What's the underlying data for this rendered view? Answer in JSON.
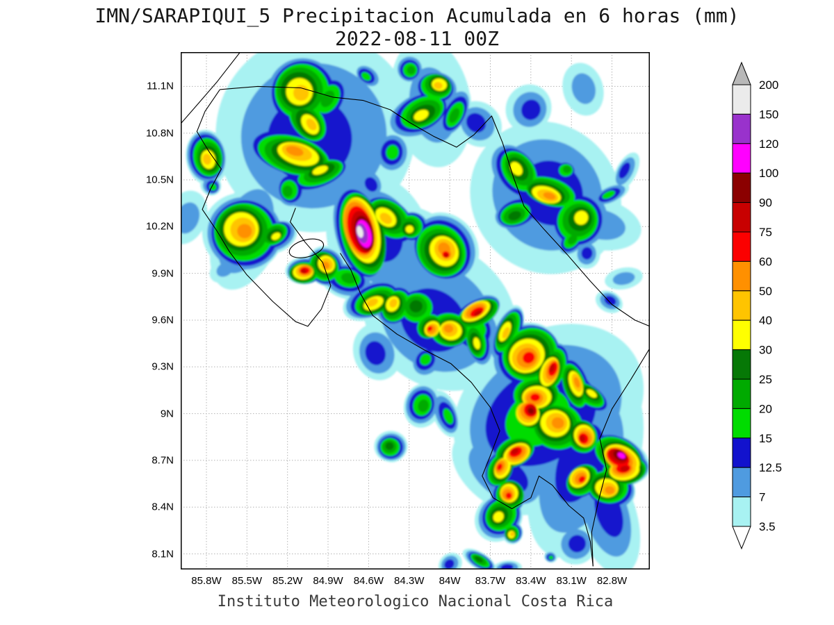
{
  "header": {
    "title": "IMN/SARAPIQUI_5 Precipitacion Acumulada en 6 horas (mm)",
    "subtitle": "2022-08-11 00Z"
  },
  "footer": {
    "credit": "Instituto Meteorologico Nacional Costa Rica"
  },
  "chart_data": {
    "type": "heatmap",
    "title": "IMN/SARAPIQUI_5 Precipitacion Acumulada en 6 horas (mm)",
    "valid_time": "2022-08-11 00Z",
    "model": "IMN/SARAPIQUI_5",
    "variable": "Precipitacion Acumulada en 6 horas",
    "units": "mm",
    "grid": "dotted",
    "legend_position": "right",
    "x_ticks": [
      "85.8W",
      "85.5W",
      "85.2W",
      "84.9W",
      "84.6W",
      "84.3W",
      "84W",
      "83.7W",
      "83.4W",
      "83.1W",
      "82.8W"
    ],
    "y_ticks": [
      "11.1N",
      "10.8N",
      "10.5N",
      "10.2N",
      "9.9N",
      "9.6N",
      "9.3N",
      "9N",
      "8.7N",
      "8.4N",
      "8.1N"
    ],
    "lon_range": [
      -85.99,
      -82.52
    ],
    "lat_range": [
      8.0,
      11.32
    ],
    "colorbar": {
      "levels": [
        3.5,
        7,
        12.5,
        15,
        20,
        25,
        30,
        40,
        50,
        60,
        75,
        90,
        100,
        120,
        150,
        200
      ],
      "band_colors": [
        "#a8f2f2",
        "#4f9be0",
        "#1212cd",
        "#00dc00",
        "#00aa00",
        "#067806",
        "#ffff00",
        "#ffc400",
        "#ff9000",
        "#fb0000",
        "#c80000",
        "#8b0000",
        "#ff00ff",
        "#9932cc",
        "#ebebeb"
      ],
      "over_color": "#b8b8b8",
      "under_color": "#ffffff"
    },
    "cells": [
      [
        -85.1,
        11.06,
        40,
        0.22
      ],
      [
        -85.04,
        10.87,
        40,
        0.25
      ],
      [
        -85.14,
        10.67,
        50,
        0.27
      ],
      [
        -84.96,
        10.55,
        30,
        0.2
      ],
      [
        -84.91,
        11.01,
        20,
        0.17
      ],
      [
        -85.19,
        10.43,
        20,
        0.2
      ],
      [
        -85.03,
        10.78,
        12.5,
        0.54
      ],
      [
        -84.09,
        11.1,
        40,
        0.2
      ],
      [
        -84.21,
        10.92,
        30,
        0.2
      ],
      [
        -83.97,
        10.92,
        20,
        0.15
      ],
      [
        -84.15,
        10.99,
        7,
        0.39
      ],
      [
        -83.8,
        10.87,
        12.5,
        0.2
      ],
      [
        -84.42,
        10.67,
        15,
        0.12
      ],
      [
        -84.58,
        10.47,
        12.5,
        0.15
      ],
      [
        -83.41,
        10.96,
        12.5,
        0.17
      ],
      [
        -83.02,
        11.09,
        7,
        0.15
      ],
      [
        -84.61,
        11.16,
        15,
        0.12
      ],
      [
        -84.29,
        11.21,
        20,
        0.1
      ],
      [
        -83.5,
        10.56,
        30,
        0.2
      ],
      [
        -83.27,
        10.41,
        50,
        0.22
      ],
      [
        -83.51,
        10.28,
        25,
        0.17
      ],
      [
        -83.04,
        10.25,
        30,
        0.19
      ],
      [
        -83.14,
        10.56,
        20,
        0.15
      ],
      [
        -83.26,
        10.39,
        12.5,
        0.44
      ],
      [
        -82.9,
        10.2,
        7,
        0.29
      ],
      [
        -82.82,
        10.41,
        15,
        0.11
      ],
      [
        -82.7,
        10.56,
        12.5,
        0.12
      ],
      [
        -85.79,
        10.64,
        40,
        0.15
      ],
      [
        -85.76,
        10.46,
        15,
        0.12
      ],
      [
        -85.53,
        10.17,
        50,
        0.22
      ],
      [
        -85.29,
        10.14,
        30,
        0.17
      ],
      [
        -85.5,
        10.15,
        12.5,
        0.34
      ],
      [
        -84.65,
        10.17,
        150,
        0.27
      ],
      [
        -84.46,
        10.25,
        40,
        0.2
      ],
      [
        -84.29,
        10.19,
        30,
        0.17
      ],
      [
        -84.05,
        10.05,
        50,
        0.2
      ],
      [
        -84.02,
        10.02,
        75,
        0.12
      ],
      [
        -84.5,
        10.15,
        12.5,
        0.44
      ],
      [
        -84.24,
        10.02,
        7,
        0.34
      ],
      [
        -85.08,
        9.91,
        75,
        0.14
      ],
      [
        -84.92,
        9.95,
        50,
        0.15
      ],
      [
        -84.75,
        9.86,
        20,
        0.15
      ],
      [
        -84.56,
        9.72,
        40,
        0.2
      ],
      [
        -84.41,
        9.7,
        40,
        0.17
      ],
      [
        -84.24,
        9.68,
        25,
        0.15
      ],
      [
        -84.14,
        9.55,
        60,
        0.17
      ],
      [
        -84.0,
        9.54,
        50,
        0.15
      ],
      [
        -83.8,
        9.65,
        75,
        0.17
      ],
      [
        -83.58,
        9.52,
        40,
        0.17
      ],
      [
        -83.8,
        9.46,
        30,
        0.17
      ],
      [
        -84.1,
        9.6,
        12.5,
        0.44
      ],
      [
        -83.8,
        9.55,
        15,
        0.34
      ],
      [
        -83.42,
        9.37,
        60,
        0.2
      ],
      [
        -83.25,
        9.28,
        75,
        0.19
      ],
      [
        -83.07,
        9.19,
        50,
        0.17
      ],
      [
        -82.96,
        9.12,
        30,
        0.15
      ],
      [
        -83.36,
        9.11,
        60,
        0.17
      ],
      [
        -83.41,
        9.01,
        90,
        0.21
      ],
      [
        -83.21,
        8.93,
        50,
        0.19
      ],
      [
        -83.01,
        8.85,
        75,
        0.17
      ],
      [
        -82.74,
        8.72,
        100,
        0.2
      ],
      [
        -82.71,
        8.64,
        75,
        0.15
      ],
      [
        -83.03,
        8.58,
        60,
        0.16
      ],
      [
        -82.83,
        8.52,
        50,
        0.2
      ],
      [
        -83.51,
        8.75,
        75,
        0.14
      ],
      [
        -83.62,
        8.65,
        60,
        0.15
      ],
      [
        -83.56,
        8.48,
        60,
        0.16
      ],
      [
        -83.63,
        8.34,
        30,
        0.14
      ],
      [
        -83.54,
        8.23,
        40,
        0.11
      ],
      [
        -83.31,
        9.01,
        15,
        0.59
      ],
      [
        -83.0,
        8.7,
        12.5,
        0.54
      ],
      [
        -82.82,
        8.35,
        12.5,
        0.34
      ],
      [
        -83.6,
        8.6,
        12.5,
        0.39
      ],
      [
        -84.44,
        8.79,
        25,
        0.09
      ],
      [
        -84.44,
        8.79,
        7,
        0.17
      ],
      [
        -84.2,
        9.05,
        20,
        0.12
      ],
      [
        -84.02,
        8.99,
        15,
        0.15
      ],
      [
        -83.78,
        8.06,
        25,
        0.1
      ],
      [
        -83.58,
        8.01,
        12.5,
        0.09
      ],
      [
        -84.0,
        8.03,
        12.5,
        0.07
      ],
      [
        -83.25,
        8.08,
        15,
        0.07
      ],
      [
        -83.06,
        8.17,
        12.5,
        0.12
      ],
      [
        -82.82,
        9.72,
        12.5,
        0.1
      ],
      [
        -82.72,
        9.86,
        7,
        0.12
      ],
      [
        -83.09,
        10.12,
        20,
        0.11
      ],
      [
        -82.98,
        10.03,
        12.5,
        0.1
      ],
      [
        -85.66,
        9.92,
        7,
        0.12
      ],
      [
        -85.95,
        10.25,
        7,
        0.15
      ],
      [
        -84.55,
        9.4,
        12.5,
        0.2
      ],
      [
        -84.17,
        9.34,
        15,
        0.15
      ]
    ],
    "basemap": {
      "coastlines": [
        [
          [
            -85.55,
            11.32
          ],
          [
            -85.72,
            11.13
          ],
          [
            -85.86,
            10.99
          ],
          [
            -85.99,
            10.86
          ]
        ],
        [
          [
            -85.7,
            11.08
          ],
          [
            -85.42,
            11.1
          ],
          [
            -85.1,
            11.09
          ],
          [
            -84.86,
            11.03
          ],
          [
            -84.64,
            11.01
          ],
          [
            -84.44,
            10.95
          ],
          [
            -84.3,
            10.87
          ],
          [
            -84.12,
            10.78
          ],
          [
            -83.95,
            10.71
          ],
          [
            -83.82,
            10.79
          ],
          [
            -83.69,
            10.91
          ],
          [
            -83.61,
            10.74
          ],
          [
            -83.53,
            10.52
          ],
          [
            -83.45,
            10.33
          ],
          [
            -83.3,
            10.18
          ],
          [
            -83.13,
            10.02
          ],
          [
            -82.96,
            9.85
          ],
          [
            -82.8,
            9.7
          ],
          [
            -82.63,
            9.6
          ],
          [
            -82.52,
            9.56
          ]
        ],
        [
          [
            -85.7,
            11.08
          ],
          [
            -85.81,
            10.94
          ],
          [
            -85.87,
            10.81
          ],
          [
            -85.78,
            10.68
          ],
          [
            -85.69,
            10.57
          ],
          [
            -85.77,
            10.44
          ],
          [
            -85.83,
            10.31
          ],
          [
            -85.72,
            10.17
          ],
          [
            -85.63,
            10.04
          ],
          [
            -85.5,
            9.89
          ],
          [
            -85.31,
            9.72
          ],
          [
            -85.14,
            9.59
          ],
          [
            -85.05,
            9.56
          ],
          [
            -84.95,
            9.67
          ],
          [
            -84.88,
            9.82
          ],
          [
            -84.94,
            9.97
          ],
          [
            -85.07,
            10.1
          ],
          [
            -85.18,
            10.23
          ],
          [
            -85.14,
            10.32
          ]
        ],
        [
          [
            -84.81,
            10.03
          ],
          [
            -84.73,
            9.92
          ],
          [
            -84.66,
            9.77
          ],
          [
            -84.57,
            9.63
          ],
          [
            -84.39,
            9.51
          ],
          [
            -84.19,
            9.41
          ],
          [
            -83.99,
            9.32
          ],
          [
            -83.84,
            9.2
          ],
          [
            -83.7,
            9.04
          ],
          [
            -83.63,
            8.89
          ],
          [
            -83.7,
            8.73
          ],
          [
            -83.76,
            8.6
          ],
          [
            -83.68,
            8.46
          ],
          [
            -83.54,
            8.39
          ],
          [
            -83.4,
            8.46
          ],
          [
            -83.34,
            8.6
          ],
          [
            -83.24,
            8.54
          ],
          [
            -83.12,
            8.41
          ],
          [
            -83.01,
            8.33
          ],
          [
            -82.96,
            8.18
          ],
          [
            -82.94,
            8.02
          ]
        ],
        [
          [
            -82.52,
            9.42
          ],
          [
            -82.66,
            9.22
          ],
          [
            -82.8,
            9.03
          ],
          [
            -82.89,
            8.84
          ],
          [
            -82.84,
            8.64
          ],
          [
            -82.9,
            8.44
          ],
          [
            -82.95,
            8.24
          ],
          [
            -82.94,
            8.02
          ]
        ]
      ],
      "water_body": {
        "lon": -85.06,
        "lat": 10.06,
        "rx": 0.13,
        "ry": 0.055,
        "rot": -15
      }
    }
  }
}
